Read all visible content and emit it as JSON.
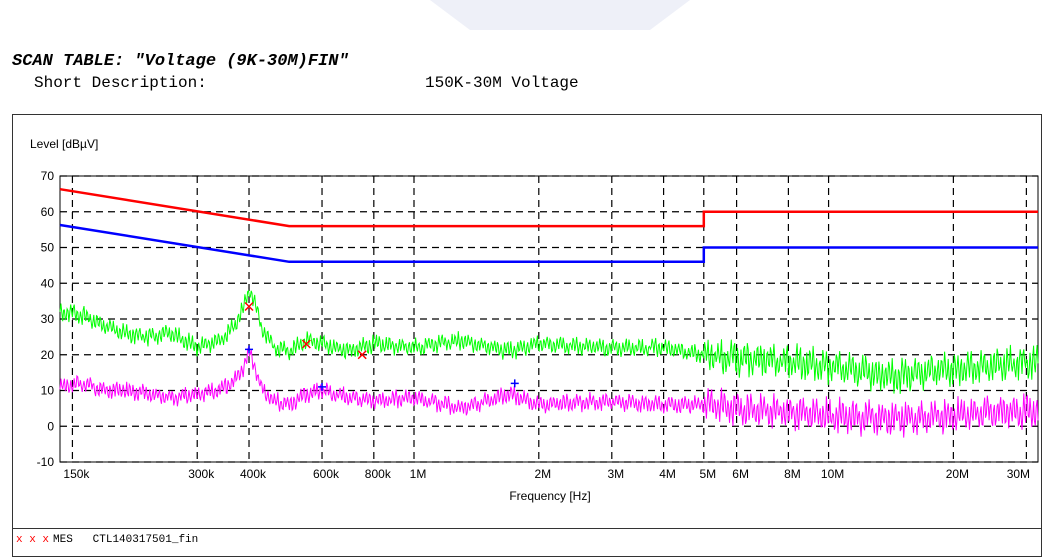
{
  "header": {
    "title": "SCAN TABLE: \"Voltage (9K-30M)FIN\"",
    "desc_label": "Short Description:",
    "desc_value": "150K-30M Voltage"
  },
  "legend": {
    "marker": "x x x",
    "label": "MES",
    "filename": "CTL140317501_fin"
  },
  "colors": {
    "quasi_peak_limit": "#ff0000",
    "average_limit": "#0000ff",
    "peak_trace": "#00ff00",
    "average_trace": "#ff00ff",
    "mes_marker": "#ff0000",
    "avg_marker": "#0000ff"
  },
  "chart_data": {
    "type": "line",
    "ylabel": "Level [dBµV]",
    "xlabel": "Frequency [Hz]",
    "x_scale": "log",
    "xlim": [
      140000,
      32000000
    ],
    "ylim": [
      -10,
      70
    ],
    "grid": true,
    "y_ticks": [
      70,
      60,
      50,
      40,
      30,
      20,
      10,
      0,
      -10
    ],
    "x_ticks": [
      {
        "v": 150000,
        "label": "150k"
      },
      {
        "v": 300000,
        "label": "300k"
      },
      {
        "v": 400000,
        "label": "400k"
      },
      {
        "v": 600000,
        "label": "600k"
      },
      {
        "v": 800000,
        "label": "800k"
      },
      {
        "v": 1000000,
        "label": "1M"
      },
      {
        "v": 2000000,
        "label": "2M"
      },
      {
        "v": 3000000,
        "label": "3M"
      },
      {
        "v": 4000000,
        "label": "4M"
      },
      {
        "v": 5000000,
        "label": "5M"
      },
      {
        "v": 6000000,
        "label": "6M"
      },
      {
        "v": 8000000,
        "label": "8M"
      },
      {
        "v": 10000000,
        "label": "10M"
      },
      {
        "v": 20000000,
        "label": "20M"
      },
      {
        "v": 30000000,
        "label": "30M"
      }
    ],
    "series": [
      {
        "color_key": "quasi_peak_limit",
        "x": [
          140000,
          500000,
          500000,
          5000000,
          5000000,
          32000000
        ],
        "y": [
          66.3,
          56,
          56,
          56,
          60,
          60
        ]
      },
      {
        "color_key": "average_limit",
        "x": [
          140000,
          500000,
          500000,
          5000000,
          5000000,
          32000000
        ],
        "y": [
          56.3,
          46,
          46,
          46,
          50,
          50
        ]
      },
      {
        "color_key": "peak_trace",
        "x": [
          140000,
          160000,
          180000,
          200000,
          230000,
          260000,
          300000,
          340000,
          370000,
          390000,
          400000,
          410000,
          430000,
          460000,
          500000,
          550000,
          600000,
          700000,
          800000,
          1000000,
          1300000,
          1700000,
          2000000,
          3000000,
          4000000,
          5000000,
          6000000,
          8000000,
          10000000,
          14000000,
          20000000,
          25000000,
          32000000
        ],
        "y": [
          32,
          31,
          28,
          26,
          25,
          26,
          22,
          24,
          28,
          34,
          38,
          36,
          27,
          22,
          21,
          24,
          23,
          21,
          23,
          22,
          24,
          21,
          23,
          22,
          22,
          20,
          19,
          18,
          17,
          14,
          16,
          17,
          18
        ]
      },
      {
        "color_key": "average_trace",
        "x": [
          140000,
          160000,
          180000,
          200000,
          230000,
          260000,
          300000,
          340000,
          370000,
          390000,
          400000,
          410000,
          430000,
          460000,
          500000,
          550000,
          600000,
          700000,
          800000,
          1000000,
          1300000,
          1700000,
          2000000,
          3000000,
          4000000,
          5000000,
          6000000,
          8000000,
          10000000,
          14000000,
          20000000,
          25000000,
          32000000
        ],
        "y": [
          11,
          12,
          10,
          10,
          9,
          8,
          9,
          10,
          13,
          17,
          21,
          18,
          10,
          7,
          6,
          9,
          10,
          8,
          7,
          8,
          5,
          9,
          6,
          7,
          6,
          6,
          5,
          4,
          3,
          2,
          3,
          4,
          4
        ]
      }
    ],
    "markers": [
      {
        "type": "x",
        "color_key": "mes_marker",
        "x": 400000,
        "y": 33.5
      },
      {
        "type": "x",
        "color_key": "mes_marker",
        "x": 550000,
        "y": 23
      },
      {
        "type": "x",
        "color_key": "mes_marker",
        "x": 750000,
        "y": 20
      },
      {
        "type": "plus",
        "color_key": "avg_marker",
        "x": 400000,
        "y": 21.5
      },
      {
        "type": "plus",
        "color_key": "avg_marker",
        "x": 600000,
        "y": 11
      },
      {
        "type": "plus",
        "color_key": "avg_marker",
        "x": 1750000,
        "y": 12
      }
    ]
  }
}
